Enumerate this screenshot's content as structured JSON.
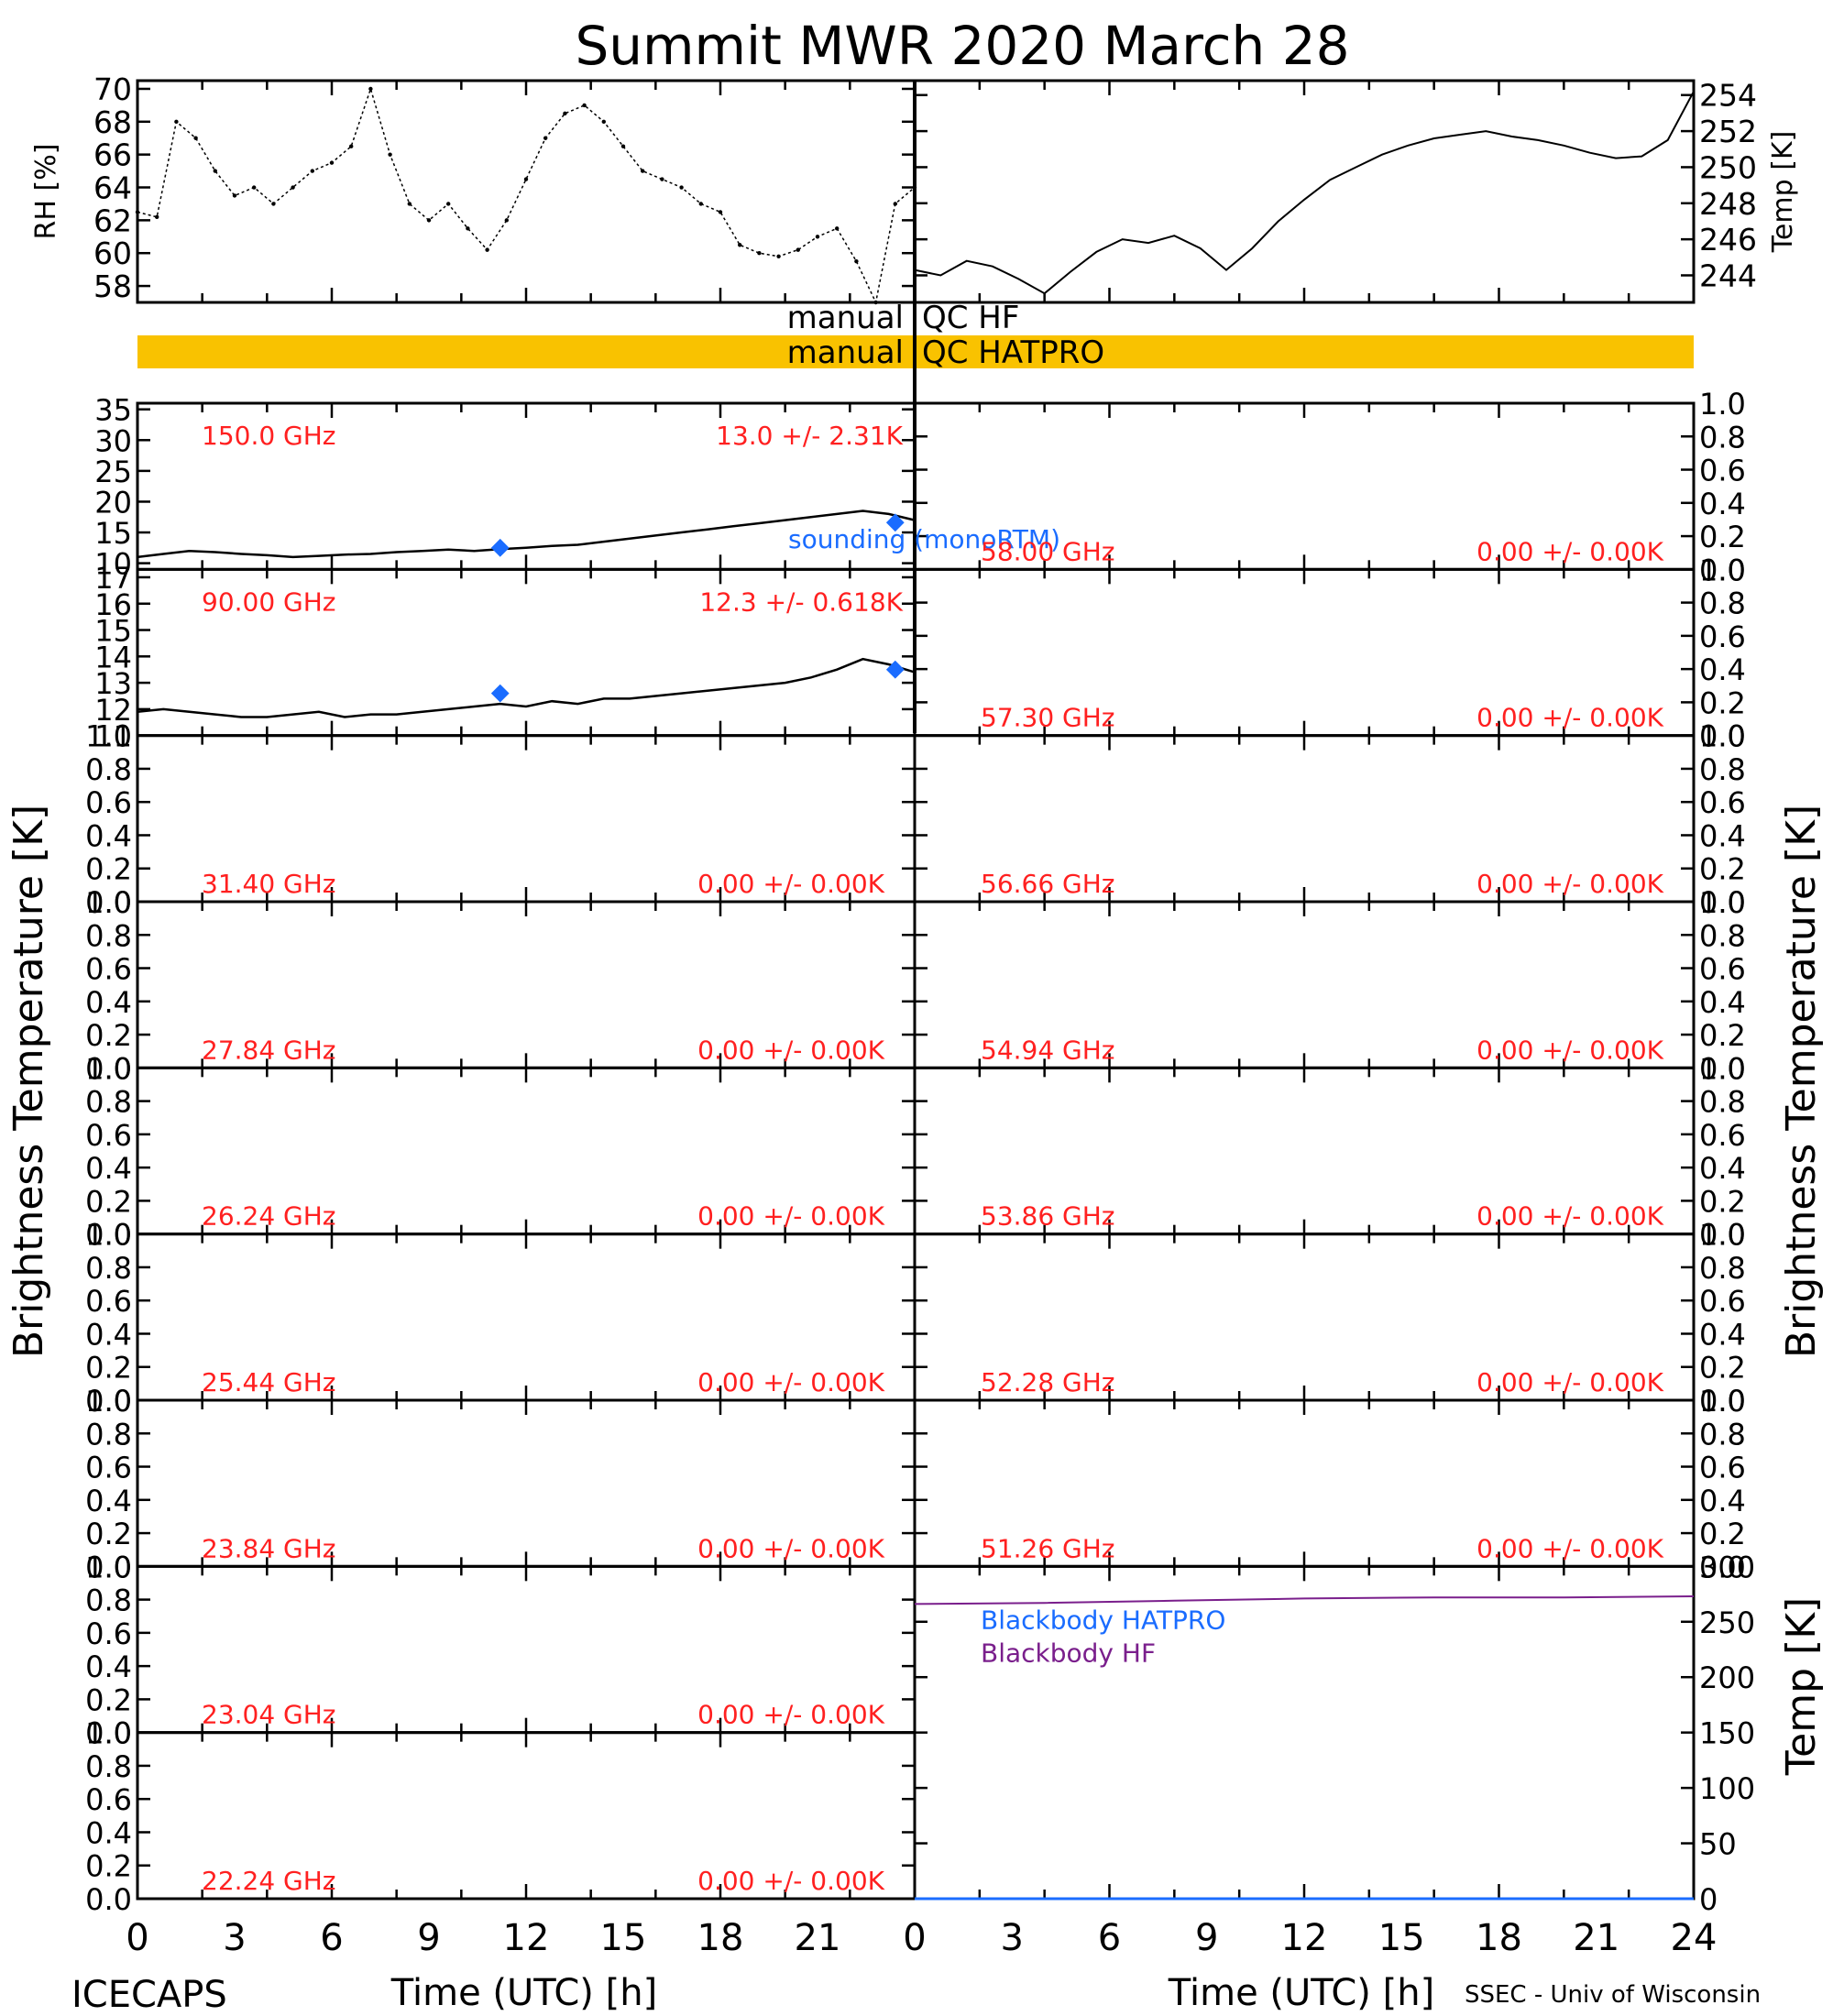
{
  "title": "Summit MWR 2020 March 28",
  "footer_left": "ICECAPS",
  "footer_right": "SSEC - Univ of Wisconsin",
  "xlabel": "Time (UTC) [h]",
  "colors": {
    "qc_bar": "#f9c200",
    "red": "#ff2020",
    "blue": "#1a6cff",
    "purple": "#7a1f8c",
    "line": "#000000"
  },
  "qc": {
    "hf_label": "manual",
    "hf_suffix": "QC HF",
    "hatpro_label": "manual",
    "hatpro_suffix": "QC HATPRO"
  },
  "chart_data": [
    {
      "id": "rh",
      "type": "scatter",
      "ylabel": "RH [%]",
      "xlim": [
        0,
        12
      ],
      "ylim": [
        57,
        70.5
      ],
      "yticks": [
        "58",
        "60",
        "62",
        "64",
        "66",
        "68",
        "70"
      ],
      "x": [
        0,
        0.3,
        0.6,
        0.9,
        1.2,
        1.5,
        1.8,
        2.1,
        2.4,
        2.7,
        3.0,
        3.3,
        3.6,
        3.9,
        4.2,
        4.5,
        4.8,
        5.1,
        5.4,
        5.7,
        6.0,
        6.3,
        6.6,
        6.9,
        7.2,
        7.5,
        7.8,
        8.1,
        8.4,
        8.7,
        9.0,
        9.3,
        9.6,
        9.9,
        10.2,
        10.5,
        10.8,
        11.1,
        11.4,
        11.7,
        12.0
      ],
      "values": [
        62.5,
        62.2,
        68.0,
        67.0,
        65.0,
        63.5,
        64.0,
        63.0,
        64.0,
        65.0,
        65.5,
        66.5,
        70.0,
        66.0,
        63.0,
        62.0,
        63.0,
        61.5,
        60.2,
        62.0,
        64.5,
        67.0,
        68.5,
        69.0,
        68.0,
        66.5,
        65.0,
        64.5,
        64.0,
        63.0,
        62.5,
        60.5,
        60.0,
        59.8,
        60.2,
        61.0,
        61.5,
        59.5,
        57.0,
        63.0,
        64.0
      ]
    },
    {
      "id": "temp",
      "type": "line",
      "ylabel": "Temp [K]",
      "xlim": [
        12,
        24
      ],
      "ylim": [
        242.5,
        254.8
      ],
      "yticks": [
        "244",
        "246",
        "248",
        "250",
        "252",
        "254"
      ],
      "x": [
        12,
        12.4,
        12.8,
        13.2,
        13.6,
        14.0,
        14.4,
        14.8,
        15.2,
        15.6,
        16.0,
        16.4,
        16.8,
        17.2,
        17.6,
        18.0,
        18.4,
        18.8,
        19.2,
        19.6,
        20.0,
        20.4,
        20.8,
        21.2,
        21.6,
        22.0,
        22.4,
        22.8,
        23.2,
        23.6,
        24.0
      ],
      "values": [
        244.3,
        244.0,
        244.8,
        244.5,
        243.8,
        243.0,
        244.2,
        245.3,
        246.0,
        245.8,
        246.2,
        245.5,
        244.3,
        245.5,
        247.0,
        248.2,
        249.3,
        250.0,
        250.7,
        251.2,
        251.6,
        251.8,
        252.0,
        251.7,
        251.5,
        251.2,
        250.8,
        250.5,
        250.6,
        251.5,
        254.2
      ]
    },
    {
      "id": "tb150",
      "type": "scatter",
      "channel": "150.0 GHz",
      "stats": "13.0 +/-  2.31K",
      "xlim": [
        0,
        12
      ],
      "ylim": [
        9,
        36
      ],
      "yticks": [
        "10",
        "15",
        "20",
        "25",
        "30",
        "35"
      ],
      "x": [
        0,
        0.4,
        0.8,
        1.2,
        1.6,
        2.0,
        2.4,
        2.8,
        3.2,
        3.6,
        4.0,
        4.4,
        4.8,
        5.2,
        5.6,
        6.0,
        6.4,
        6.8,
        7.2,
        7.6,
        8.0,
        8.4,
        8.8,
        9.2,
        9.6,
        10.0,
        10.4,
        10.8,
        11.2,
        11.6,
        12.0
      ],
      "values": [
        11.0,
        11.5,
        12.0,
        11.8,
        11.5,
        11.3,
        11.0,
        11.2,
        11.4,
        11.5,
        11.8,
        12.0,
        12.2,
        12.0,
        12.3,
        12.5,
        12.8,
        13.0,
        13.5,
        14.0,
        14.5,
        15.0,
        15.5,
        16.0,
        16.5,
        17.0,
        17.5,
        18.0,
        18.5,
        18.0,
        17.0
      ],
      "sounding": [
        [
          5.6,
          12.5
        ],
        [
          11.7,
          16.6
        ]
      ],
      "sounding_label": "sounding (monoRTM)"
    },
    {
      "id": "tb90",
      "type": "scatter",
      "channel": "90.00 GHz",
      "stats": "12.3 +/- 0.618K",
      "xlim": [
        0,
        12
      ],
      "ylim": [
        11,
        17.3
      ],
      "yticks": [
        "11",
        "12",
        "13",
        "14",
        "15",
        "16",
        "17"
      ],
      "x": [
        0,
        0.4,
        0.8,
        1.2,
        1.6,
        2.0,
        2.4,
        2.8,
        3.2,
        3.6,
        4.0,
        4.4,
        4.8,
        5.2,
        5.6,
        6.0,
        6.4,
        6.8,
        7.2,
        7.6,
        8.0,
        8.4,
        8.8,
        9.2,
        9.6,
        10.0,
        10.4,
        10.8,
        11.2,
        11.6,
        12.0
      ],
      "values": [
        11.9,
        12.0,
        11.9,
        11.8,
        11.7,
        11.7,
        11.8,
        11.9,
        11.7,
        11.8,
        11.8,
        11.9,
        12.0,
        12.1,
        12.2,
        12.1,
        12.3,
        12.2,
        12.4,
        12.4,
        12.5,
        12.6,
        12.7,
        12.8,
        12.9,
        13.0,
        13.2,
        13.5,
        13.9,
        13.7,
        13.4
      ],
      "sounding": [
        [
          5.6,
          12.6
        ],
        [
          11.7,
          13.5
        ]
      ]
    },
    {
      "id": "blackbody",
      "type": "line",
      "ylabel": "Temp [K]",
      "xlim": [
        12,
        24
      ],
      "ylim": [
        0,
        300
      ],
      "yticks": [
        "0",
        "50",
        "100",
        "150",
        "200",
        "250",
        "300"
      ],
      "series": [
        {
          "name": "Blackbody HATPRO",
          "x": [
            12,
            24
          ],
          "values": [
            0,
            0
          ]
        },
        {
          "name": "Blackbody HF",
          "x": [
            12,
            14,
            16,
            18,
            20,
            22,
            24
          ],
          "values": [
            266,
            267,
            269,
            271,
            272,
            272,
            273
          ]
        }
      ]
    }
  ],
  "empty_panels": {
    "stats": "0.00 +/-  0.00K",
    "yticks": [
      "0.0",
      "0.2",
      "0.4",
      "0.6",
      "0.8",
      "1.0"
    ],
    "left_channels": [
      "31.40 GHz",
      "27.84 GHz",
      "26.24 GHz",
      "25.44 GHz",
      "23.84 GHz",
      "23.04 GHz",
      "22.24 GHz"
    ],
    "right_channels": [
      "58.00 GHz",
      "57.30 GHz",
      "56.66 GHz",
      "54.94 GHz",
      "53.86 GHz",
      "52.28 GHz",
      "51.26 GHz"
    ]
  },
  "axis_titles": {
    "tb_left": "Brightness Temperature [K]",
    "tb_right": "Brightness Temperature [K]"
  },
  "xticks_left": [
    "0",
    "3",
    "6",
    "9",
    "12",
    "15",
    "18",
    "21"
  ],
  "xticks_right": [
    "0",
    "3",
    "6",
    "9",
    "12",
    "15",
    "18",
    "21",
    "24"
  ]
}
